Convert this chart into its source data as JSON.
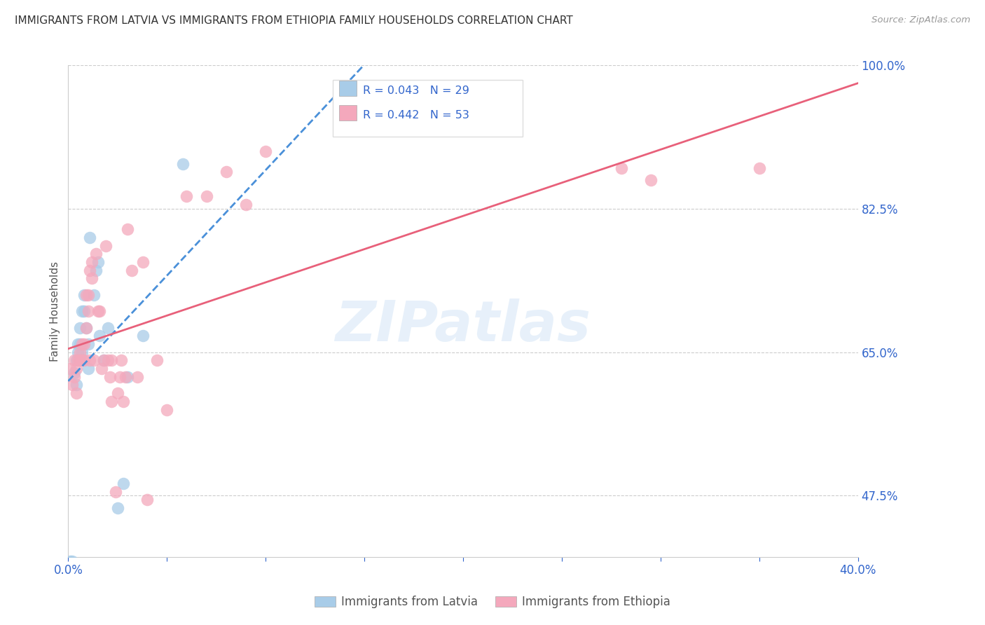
{
  "title": "IMMIGRANTS FROM LATVIA VS IMMIGRANTS FROM ETHIOPIA FAMILY HOUSEHOLDS CORRELATION CHART",
  "source": "Source: ZipAtlas.com",
  "ylabel": "Family Households",
  "xmin": 0.0,
  "xmax": 0.4,
  "ymin": 0.4,
  "ymax": 1.0,
  "right_ytick_labels": [
    "100.0%",
    "82.5%",
    "65.0%",
    "47.5%"
  ],
  "right_ytick_values": [
    1.0,
    0.825,
    0.65,
    0.475
  ],
  "legend_label1": "Immigrants from Latvia",
  "legend_label2": "Immigrants from Ethiopia",
  "blue_color": "#a8cce8",
  "pink_color": "#f4a8bc",
  "blue_line_color": "#4a90d9",
  "pink_line_color": "#e8607a",
  "legend_text_color": "#3366cc",
  "title_color": "#333333",
  "watermark": "ZIPatlas",
  "latvia_x": [
    0.001,
    0.002,
    0.003,
    0.004,
    0.004,
    0.005,
    0.005,
    0.006,
    0.006,
    0.006,
    0.007,
    0.007,
    0.008,
    0.008,
    0.009,
    0.01,
    0.01,
    0.011,
    0.013,
    0.014,
    0.015,
    0.016,
    0.018,
    0.02,
    0.025,
    0.028,
    0.03,
    0.038,
    0.058
  ],
  "latvia_y": [
    0.395,
    0.395,
    0.625,
    0.64,
    0.61,
    0.65,
    0.66,
    0.64,
    0.66,
    0.68,
    0.65,
    0.7,
    0.7,
    0.72,
    0.68,
    0.63,
    0.66,
    0.79,
    0.72,
    0.75,
    0.76,
    0.67,
    0.64,
    0.68,
    0.46,
    0.49,
    0.62,
    0.67,
    0.88
  ],
  "ethiopia_x": [
    0.001,
    0.002,
    0.003,
    0.003,
    0.004,
    0.004,
    0.005,
    0.006,
    0.006,
    0.007,
    0.007,
    0.008,
    0.008,
    0.009,
    0.009,
    0.01,
    0.01,
    0.011,
    0.011,
    0.012,
    0.012,
    0.013,
    0.014,
    0.015,
    0.016,
    0.017,
    0.018,
    0.019,
    0.02,
    0.021,
    0.022,
    0.022,
    0.024,
    0.025,
    0.026,
    0.027,
    0.028,
    0.029,
    0.03,
    0.032,
    0.035,
    0.038,
    0.04,
    0.045,
    0.05,
    0.06,
    0.07,
    0.08,
    0.09,
    0.1,
    0.28,
    0.295,
    0.35
  ],
  "ethiopia_y": [
    0.63,
    0.61,
    0.62,
    0.64,
    0.6,
    0.63,
    0.64,
    0.64,
    0.65,
    0.64,
    0.66,
    0.64,
    0.66,
    0.68,
    0.72,
    0.7,
    0.72,
    0.64,
    0.75,
    0.74,
    0.76,
    0.64,
    0.77,
    0.7,
    0.7,
    0.63,
    0.64,
    0.78,
    0.64,
    0.62,
    0.64,
    0.59,
    0.48,
    0.6,
    0.62,
    0.64,
    0.59,
    0.62,
    0.8,
    0.75,
    0.62,
    0.76,
    0.47,
    0.64,
    0.58,
    0.84,
    0.84,
    0.87,
    0.83,
    0.895,
    0.875,
    0.86,
    0.875
  ]
}
